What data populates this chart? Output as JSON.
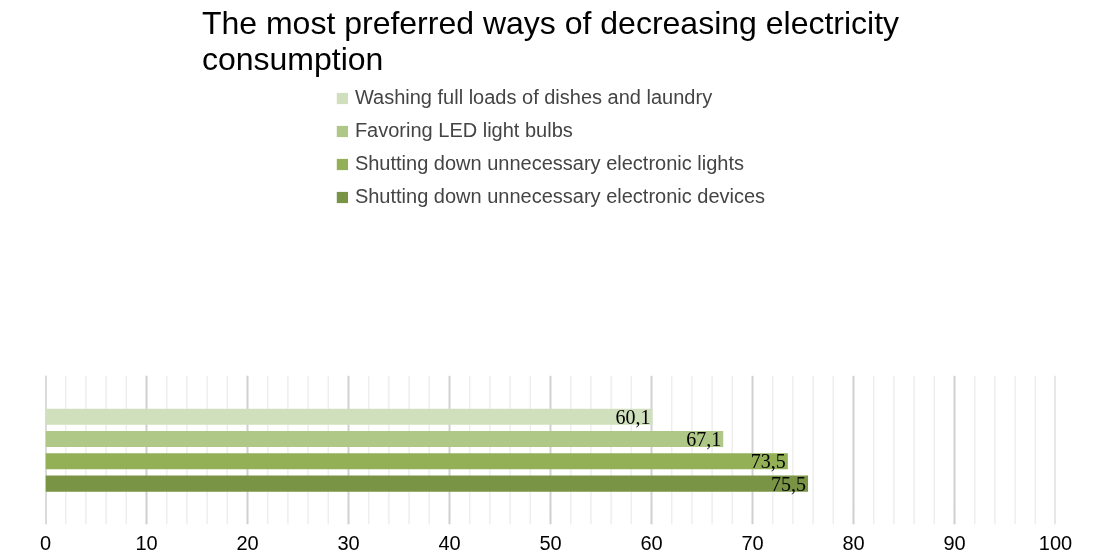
{
  "chart_data": {
    "type": "bar",
    "orientation": "horizontal",
    "title": "The most preferred ways of decreasing electricity\nconsumption",
    "categories": [
      null
    ],
    "series": [
      {
        "name": "Washing full loads of dishes and laundry",
        "color": "#d0dfbc",
        "values": [
          60.1
        ],
        "value_labels": [
          "60,1"
        ]
      },
      {
        "name": "Favoring LED light bulbs",
        "color": "#afc888",
        "values": [
          67.1
        ],
        "value_labels": [
          "67,1"
        ]
      },
      {
        "name": "Shutting down unnecessary electronic lights",
        "color": "#93b057",
        "values": [
          73.5
        ],
        "value_labels": [
          "73,5"
        ]
      },
      {
        "name": "Shutting down unnecessary electronic devices",
        "color": "#7a9446",
        "values": [
          75.5
        ],
        "value_labels": [
          "75,5"
        ]
      }
    ],
    "xlim": [
      0,
      100
    ],
    "xticks": [
      0,
      {
        "value": 2,
        "label": null
      },
      {
        "value": 4,
        "label": null
      },
      {
        "value": 6,
        "label": null
      },
      {
        "value": 8,
        "label": null
      },
      10,
      {
        "value": 12,
        "label": null
      },
      {
        "value": 14,
        "label": null
      },
      {
        "value": 16,
        "label": null
      },
      {
        "value": 18,
        "label": null
      },
      20,
      {
        "value": 22,
        "label": null
      },
      {
        "value": 24,
        "label": null
      },
      {
        "value": 26,
        "label": null
      },
      {
        "value": 28,
        "label": null
      },
      30,
      {
        "value": 32,
        "label": null
      },
      {
        "value": 34,
        "label": null
      },
      {
        "value": 36,
        "label": null
      },
      {
        "value": 38,
        "label": null
      },
      40,
      {
        "value": 42,
        "label": null
      },
      {
        "value": 44,
        "label": null
      },
      {
        "value": 46,
        "label": null
      },
      {
        "value": 48,
        "label": null
      },
      50,
      {
        "value": 52,
        "label": null
      },
      {
        "value": 54,
        "label": null
      },
      {
        "value": 56,
        "label": null
      },
      {
        "value": 58,
        "label": null
      },
      60,
      {
        "value": 62,
        "label": null
      },
      {
        "value": 64,
        "label": null
      },
      {
        "value": 66,
        "label": null
      },
      {
        "value": 68,
        "label": null
      },
      70,
      {
        "value": 72,
        "label": null
      },
      {
        "value": 74,
        "label": null
      },
      {
        "value": 76,
        "label": null
      },
      {
        "value": 78,
        "label": null
      },
      80,
      {
        "value": 82,
        "label": null
      },
      {
        "value": 84,
        "label": null
      },
      {
        "value": 86,
        "label": null
      },
      {
        "value": 88,
        "label": null
      },
      90,
      {
        "value": 92,
        "label": null
      },
      {
        "value": 94,
        "label": null
      },
      {
        "value": 96,
        "label": null
      },
      {
        "value": 98,
        "label": null
      },
      100
    ],
    "grid": "x",
    "legend": "top",
    "tick_labels": "x"
  }
}
